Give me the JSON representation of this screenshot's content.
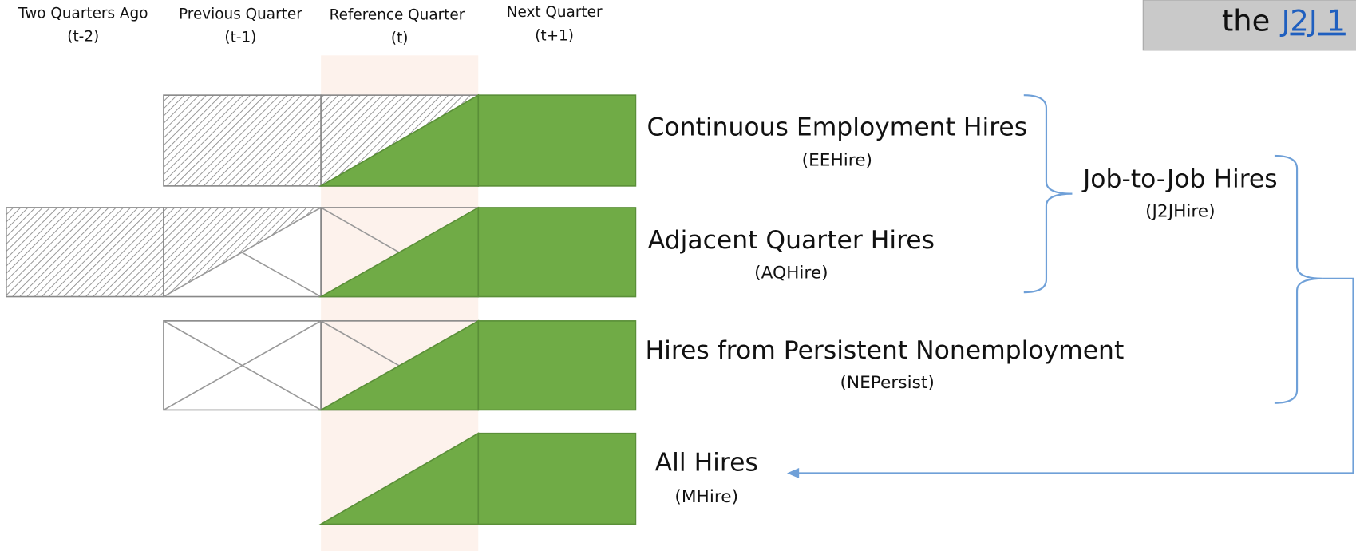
{
  "columns": [
    {
      "label": "Two Quarters Ago",
      "period": "(t-2)"
    },
    {
      "label": "Previous Quarter",
      "period": "(t-1)"
    },
    {
      "label": "Reference Quarter",
      "period": "(t)"
    },
    {
      "label": "Next Quarter",
      "period": "(t+1)"
    }
  ],
  "rows": [
    {
      "label": "Continuous Employment Hires",
      "code": "(EEHire)"
    },
    {
      "label": "Adjacent Quarter Hires",
      "code": "(AQHire)"
    },
    {
      "label": "Hires from Persistent Nonemployment",
      "code": "(NEPersist)"
    },
    {
      "label": "All Hires",
      "code": "(MHire)"
    }
  ],
  "group": {
    "label": "Job-to-Job Hires",
    "code": "(J2JHire)"
  },
  "corner": {
    "text": "the",
    "link": "J2J 1"
  }
}
